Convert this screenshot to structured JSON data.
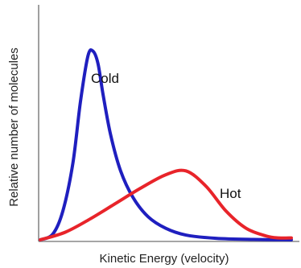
{
  "chart_data": {
    "type": "line",
    "title": "",
    "xlabel": "Kinetic Energy (velocity)",
    "ylabel": "Relative number of molecules",
    "xlim": [
      0,
      10
    ],
    "ylim": [
      0,
      1
    ],
    "grid": false,
    "legend": "none",
    "tick_labels": false,
    "series": [
      {
        "name": "Cold",
        "color": "#1f1fbf",
        "x": [
          0.0,
          0.5,
          0.9,
          1.3,
          1.6,
          1.9,
          2.1,
          2.3,
          2.5,
          2.8,
          3.2,
          3.7,
          4.3,
          5.0,
          5.8,
          7.0,
          8.5,
          10.0
        ],
        "y": [
          0.0,
          0.03,
          0.15,
          0.4,
          0.72,
          0.96,
          0.985,
          0.92,
          0.76,
          0.55,
          0.36,
          0.22,
          0.12,
          0.06,
          0.025,
          0.008,
          0.002,
          0.0
        ]
      },
      {
        "name": "Hot",
        "color": "#e8242a",
        "x": [
          0.0,
          1.0,
          2.0,
          3.0,
          4.0,
          5.0,
          5.8,
          6.6,
          7.4,
          8.2,
          9.0,
          9.5,
          10.0
        ],
        "y": [
          0.0,
          0.04,
          0.11,
          0.19,
          0.27,
          0.34,
          0.36,
          0.28,
          0.15,
          0.06,
          0.02,
          0.01,
          0.01
        ]
      }
    ]
  }
}
